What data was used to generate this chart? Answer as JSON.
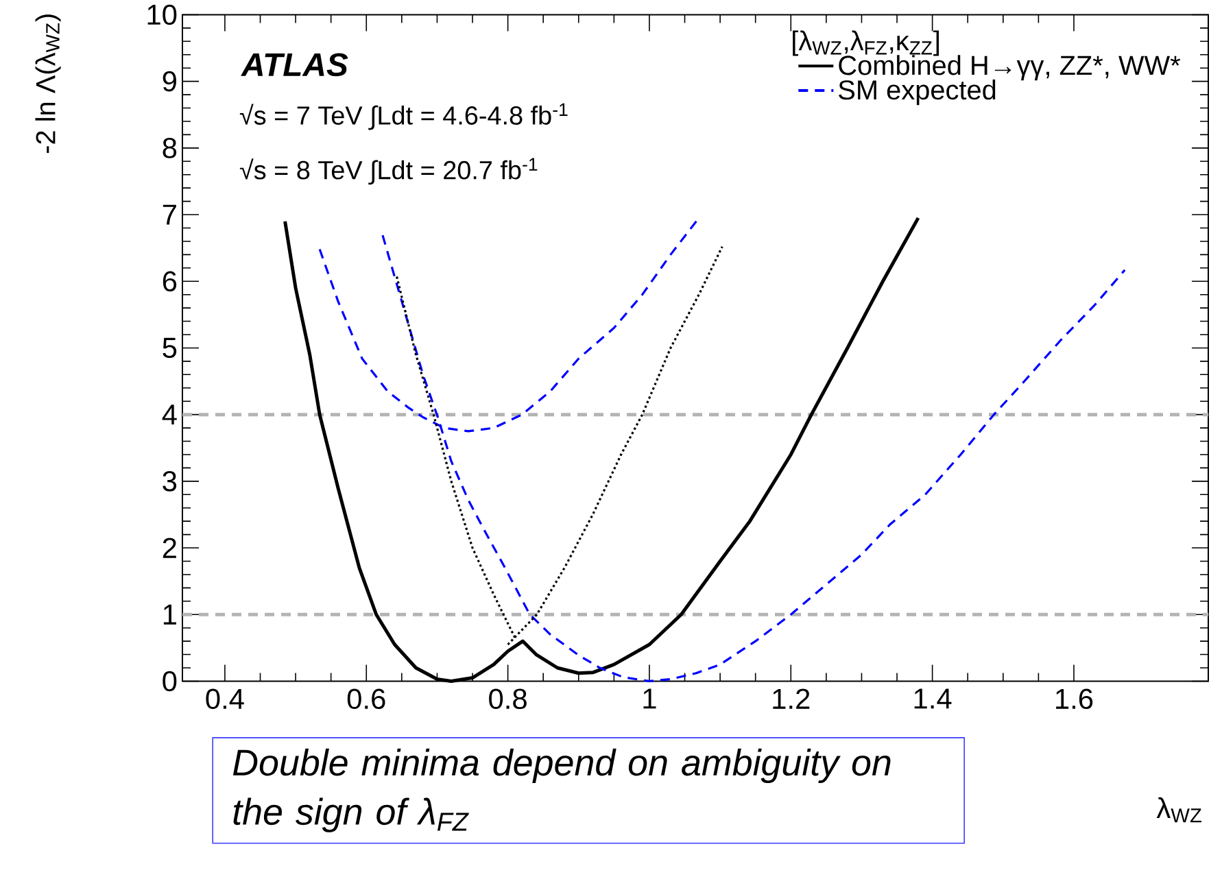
{
  "chart_data": {
    "type": "line",
    "xlabel": "λ$_{WZ}$",
    "ylabel": "-2 ln Λ(λ$_{WZ}$)",
    "legend_title": "[λ$_{WZ}$,λ$_{FZ}$,κ$_{ZZ}$]",
    "legend": "top right",
    "xlim": [
      0.34,
      1.79
    ],
    "ylim": [
      0,
      10
    ],
    "xticks": [
      0.4,
      0.6,
      0.8,
      1,
      1.2,
      1.4,
      1.6
    ],
    "yticks": [
      0,
      1,
      2,
      3,
      4,
      5,
      6,
      7,
      8,
      9,
      10
    ],
    "ref_lines": [
      {
        "axis": "y",
        "value": 4,
        "color": "#b4b4b4",
        "line_style": "dashed"
      },
      {
        "axis": "y",
        "value": 1,
        "color": "#b4b4b4",
        "line_style": "dashed"
      }
    ],
    "annotations": [
      "ATLAS",
      "√s = 7 TeV ∫Ldt = 4.6-4.8 fb$^{-1}$",
      "√s = 8 TeV ∫Ldt = 20.7 fb$^{-1}$",
      "Double minima depend on ambiguity on the sign of λ$_{FZ}$"
    ],
    "series": [
      {
        "name": "Combined H→γγ, ZZ*, WW*",
        "color": "#000000",
        "line_style": "solid",
        "x": [
          0.485,
          0.5,
          0.52,
          0.534,
          0.56,
          0.59,
          0.614,
          0.64,
          0.67,
          0.7,
          0.72,
          0.75,
          0.78,
          0.8,
          0.821,
          0.84,
          0.87,
          0.9,
          0.92,
          0.95,
          1.0,
          1.045,
          1.1,
          1.142,
          1.2,
          1.229,
          1.28,
          1.33,
          1.38
        ],
        "values": [
          6.9,
          5.9,
          4.9,
          4.0,
          2.9,
          1.7,
          1.0,
          0.55,
          0.2,
          0.03,
          0.0,
          0.05,
          0.25,
          0.45,
          0.6,
          0.4,
          0.2,
          0.12,
          0.13,
          0.25,
          0.55,
          1.0,
          1.8,
          2.4,
          3.4,
          4.0,
          5.0,
          6.0,
          6.95
        ]
      },
      {
        "name": "SM expected",
        "color": "#0000ff",
        "line_style": "dashed",
        "x": [
          0.534,
          0.56,
          0.594,
          0.63,
          0.66,
          0.68,
          0.71,
          0.744,
          0.78,
          0.82,
          0.86,
          0.9,
          0.95,
          0.99,
          1.03,
          1.07
        ],
        "values": [
          6.48,
          5.7,
          4.84,
          4.35,
          4.1,
          3.96,
          3.8,
          3.75,
          3.8,
          4.0,
          4.35,
          4.84,
          5.3,
          5.8,
          6.4,
          6.95
        ]
      },
      {
        "color": "#0000ff",
        "line_style": "dashed",
        "x": [
          0.623,
          0.65,
          0.68,
          0.701,
          0.72,
          0.744,
          0.77,
          0.796,
          0.831,
          0.86,
          0.9,
          0.93,
          0.963,
          1.0,
          1.03,
          1.066,
          1.1,
          1.15,
          1.2,
          1.25,
          1.3,
          1.34,
          1.39,
          1.44,
          1.487,
          1.53,
          1.58,
          1.63,
          1.672
        ],
        "values": [
          6.69,
          5.7,
          4.6,
          3.96,
          3.3,
          2.72,
          2.2,
          1.7,
          1.0,
          0.7,
          0.39,
          0.2,
          0.06,
          0.0,
          0.03,
          0.12,
          0.25,
          0.6,
          1.0,
          1.45,
          1.9,
          2.35,
          2.8,
          3.4,
          4.0,
          4.5,
          5.1,
          5.65,
          6.17
        ]
      },
      {
        "color": "#000000",
        "line_style": "dotted",
        "x": [
          0.643,
          0.67,
          0.695,
          0.72,
          0.75,
          0.78,
          0.81
        ],
        "values": [
          6.07,
          4.9,
          4.0,
          3.0,
          2.0,
          1.3,
          0.65
        ]
      },
      {
        "color": "#000000",
        "line_style": "dotted",
        "x": [
          0.8,
          0.841,
          0.88,
          0.92,
          0.96,
          0.99,
          1.03,
          1.07,
          1.103
        ],
        "values": [
          0.55,
          1.0,
          1.7,
          2.5,
          3.4,
          4.0,
          5.0,
          5.8,
          6.52
        ]
      }
    ]
  }
}
